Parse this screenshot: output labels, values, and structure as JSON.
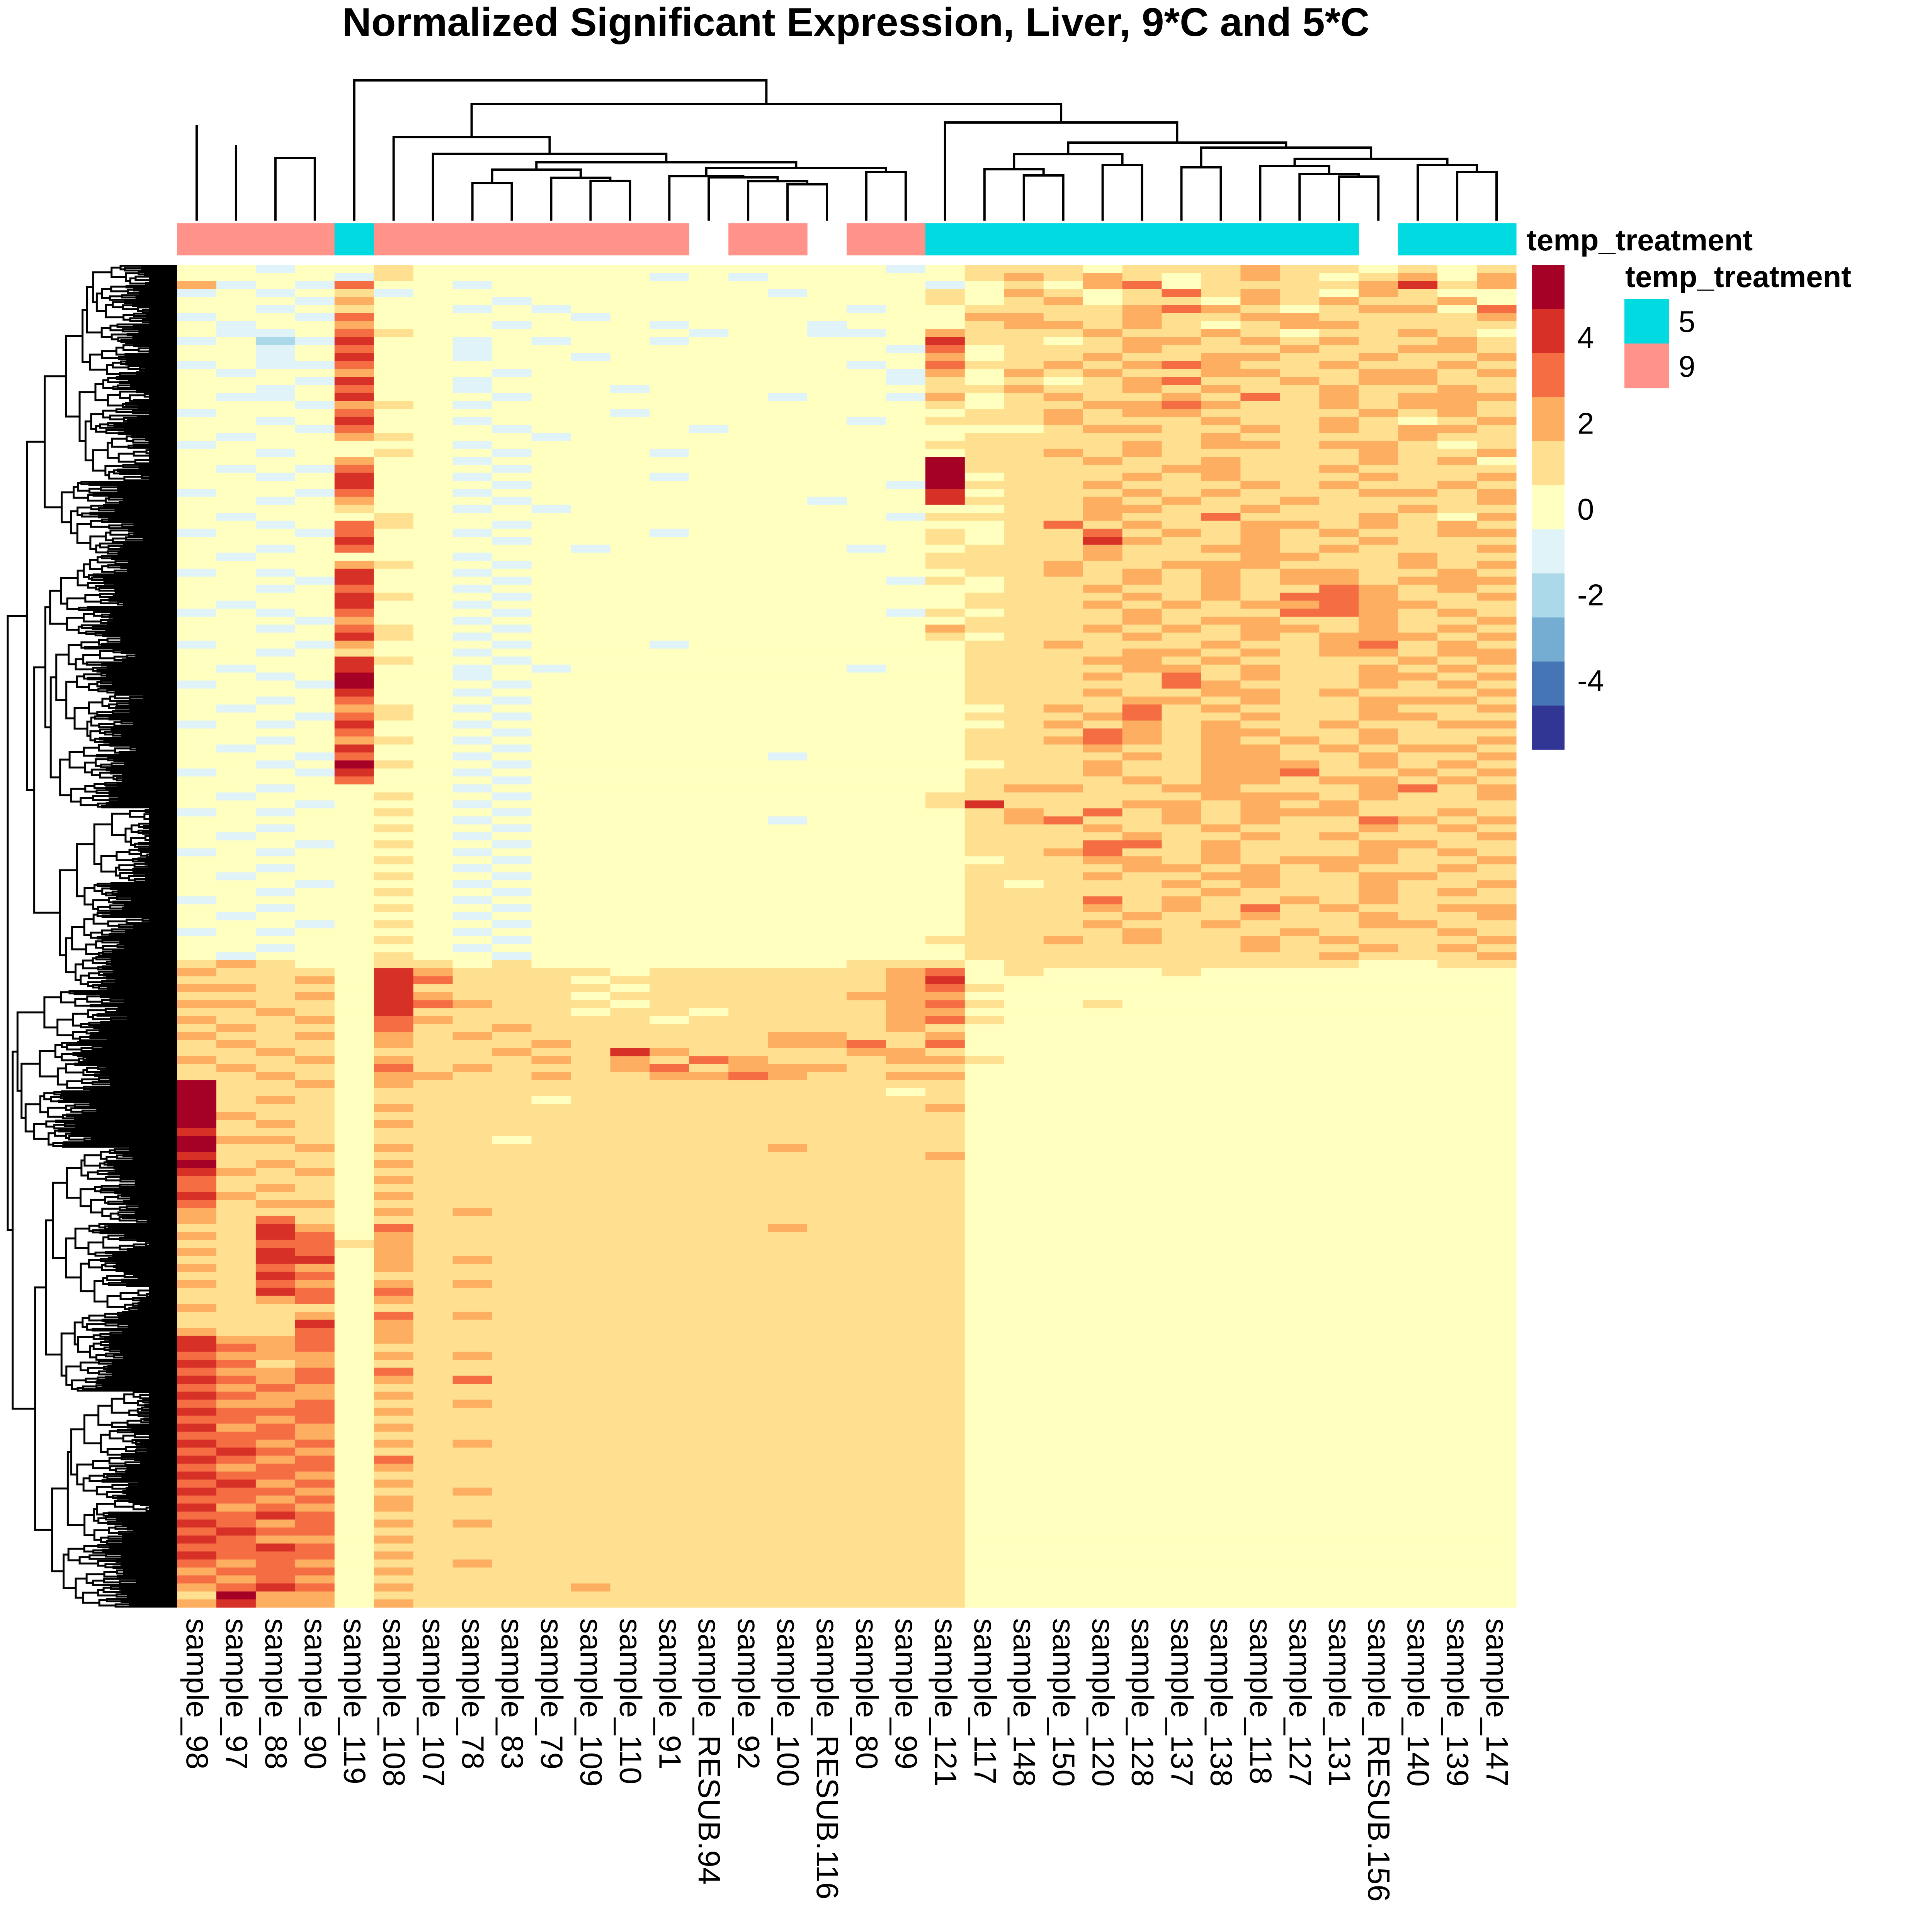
{
  "chart_data": {
    "type": "heatmap",
    "title": "Normalized Significant Expression, Liver, 9*C and 5*C",
    "columns": [
      "sample_98",
      "sample_97",
      "sample_88",
      "sample_90",
      "sample_119",
      "sample_108",
      "sample_107",
      "sample_78",
      "sample_83",
      "sample_79",
      "sample_109",
      "sample_110",
      "sample_91",
      "sample_RESUB.94",
      "sample_92",
      "sample_100",
      "sample_RESUB.116",
      "sample_80",
      "sample_99",
      "sample_121",
      "sample_117",
      "sample_148",
      "sample_150",
      "sample_120",
      "sample_128",
      "sample_137",
      "sample_138",
      "sample_118",
      "sample_127",
      "sample_131",
      "sample_RESUB.156",
      "sample_140",
      "sample_139",
      "sample_147"
    ],
    "annotation": {
      "name": "temp_treatment",
      "values": [
        "9",
        "9",
        "9",
        "9",
        "5",
        "9",
        "9",
        "9",
        "9",
        "9",
        "9",
        "9",
        "9",
        null,
        "9",
        "9",
        null,
        "9",
        "9",
        "5",
        "5",
        "5",
        "5",
        "5",
        "5",
        "5",
        "5",
        "5",
        "5",
        "5",
        null,
        "5",
        "5",
        "5"
      ],
      "legend_title": "temp_treatment",
      "levels": [
        {
          "label": "5",
          "color": "#00DAE0"
        },
        {
          "label": "9",
          "color": "#FF9289"
        }
      ]
    },
    "colorscale": {
      "levels": [
        -5.5,
        -4.5,
        -3.5,
        -2.5,
        -1.5,
        -0.5,
        0.5,
        1.5,
        2.5,
        3.5,
        4.5,
        5.5
      ],
      "colors": [
        "#313695",
        "#4575B4",
        "#74ADD1",
        "#ABD9E9",
        "#E0F3F8",
        "#FFFFBF",
        "#FEE090",
        "#FDAE61",
        "#F46D43",
        "#D73027",
        "#A50026"
      ],
      "ticks": [
        "4",
        "2",
        "0",
        "-2",
        "-4"
      ],
      "tick_values": [
        4,
        2,
        0,
        -2,
        -4
      ],
      "range": [
        -5.6,
        5.7
      ]
    },
    "value_encoding": "each row string has one char per column; char is index into colorscale.colors (0=-5 ... 5=0 ... A=+5)",
    "column_dendrogram": {
      "merges": [
        [
          [
            1
          ],
          [
            2,
            3
          ],
          0.378
        ],
        [
          [
            2
          ],
          [
            3
          ],
          0.409
        ],
        [
          [
            0
          ],
          [
            1,
            2,
            3
          ],
          0.327
        ],
        [
          [
            7
          ],
          [
            8
          ],
          0.474
        ],
        [
          [
            10
          ],
          [
            11
          ],
          0.468
        ],
        [
          [
            9
          ],
          [
            10,
            11
          ],
          0.46
        ],
        [
          [
            7,
            8
          ],
          [
            9,
            10,
            11
          ],
          0.439
        ],
        [
          [
            15
          ],
          [
            16
          ],
          0.477
        ],
        [
          [
            14
          ],
          [
            15,
            16
          ],
          0.469
        ],
        [
          [
            13
          ],
          [
            14,
            15,
            16
          ],
          0.459
        ],
        [
          [
            12
          ],
          [
            13,
            14,
            15,
            16
          ],
          0.456
        ],
        [
          [
            17
          ],
          [
            18
          ],
          0.445
        ],
        [
          [
            12,
            13,
            14,
            15,
            16
          ],
          [
            17,
            18
          ],
          0.435
        ],
        [
          [
            7,
            8,
            9,
            10,
            11
          ],
          [
            12,
            13,
            14,
            15,
            16,
            17,
            18
          ],
          0.42
        ],
        [
          [
            6
          ],
          [
            7,
            8,
            9,
            10,
            11,
            12,
            13,
            14,
            15,
            16,
            17,
            18
          ],
          0.398
        ],
        [
          [
            5
          ],
          [
            6,
            7,
            8,
            9,
            10,
            11,
            12,
            13,
            14,
            15,
            16,
            17,
            18
          ],
          0.355
        ],
        [
          [
            21
          ],
          [
            22
          ],
          0.454
        ],
        [
          [
            20
          ],
          [
            21,
            22
          ],
          0.438
        ],
        [
          [
            23
          ],
          [
            24
          ],
          0.427
        ],
        [
          [
            20,
            21,
            22
          ],
          [
            23,
            24
          ],
          0.399
        ],
        [
          [
            25
          ],
          [
            26
          ],
          0.433
        ],
        [
          [
            29
          ],
          [
            30
          ],
          0.457
        ],
        [
          [
            28
          ],
          [
            29,
            30
          ],
          0.45
        ],
        [
          [
            27
          ],
          [
            28,
            29,
            30
          ],
          0.43
        ],
        [
          [
            32
          ],
          [
            33
          ],
          0.445
        ],
        [
          [
            31
          ],
          [
            32,
            33
          ],
          0.427
        ],
        [
          [
            27,
            28,
            29,
            30
          ],
          [
            31,
            32,
            33
          ],
          0.411
        ],
        [
          [
            25,
            26
          ],
          [
            27,
            28,
            29,
            30,
            31,
            32,
            33
          ],
          0.382
        ],
        [
          [
            20,
            21,
            22,
            23,
            24
          ],
          [
            25,
            26,
            27,
            28,
            29,
            30,
            31,
            32,
            33
          ],
          0.369
        ],
        [
          [
            19
          ],
          [
            20,
            21,
            22,
            23,
            24,
            25,
            26,
            27,
            28,
            29,
            30,
            31,
            32,
            33
          ],
          0.317
        ],
        [
          [
            5,
            6,
            7,
            8,
            9,
            10,
            11,
            12,
            13,
            14,
            15,
            16,
            17,
            18
          ],
          [
            19,
            20,
            21,
            22,
            23,
            24,
            25,
            26,
            27,
            28,
            29,
            30,
            31,
            32,
            33
          ],
          0.269
        ],
        [
          [
            4
          ],
          [
            5,
            6,
            7,
            8,
            9,
            10,
            11,
            12,
            13,
            14,
            15,
            16,
            17,
            18,
            19,
            20,
            21,
            22,
            23,
            24,
            25,
            26,
            27,
            28,
            29,
            30,
            31,
            32,
            33
          ],
          0.208
        ],
        [
          [
            0,
            1,
            2,
            3
          ],
          [
            4,
            5,
            6,
            7,
            8,
            9,
            10,
            11,
            12,
            13,
            14,
            15,
            16,
            17,
            18,
            19,
            20,
            21,
            22,
            23,
            24,
            25,
            26,
            27,
            28,
            29,
            30,
            31,
            32,
            33
          ],
          0.132
        ]
      ]
    },
    "rows": [
      "5545565555555555554566656667665656",
      "5555465555554545555567676567656757",
      "7454855455555555555456578566667967",
      "4545645555555554555657656867657655",
      "5554755545555555555656756657676675",
      "5545655454555555545566667876567758",
      "4554855555455555555577667667766667",
      "5455755545554555455567767656776666",
      "5445865555555455445766676676566765",
      "4534955454554555555966567767676676",
      "5545855455555555554856667666766776",
      "5545955455455555555756676677667667",
      "4544855555555555545866767876676676",
      "5455755545555555554757676677667767",
      "5554955455555555554656567866767766",
      "5545855455545555555667667676676676",
      "5445955545555554554756766768676777",
      "5554765455555555555656677876676776",
      "4555855555545555555566767766667676",
      "5545955455555555545666766676676567",
      "5554855545555455555555677667676776",
      "5455765554555555555566666676666766",
      "4555555455555555555666667677677656",
      "5545565545554555555566767666667667",
      "5555755455555555555A66676676667675",
      "5454855545555555555A66666776676666",
      "5545955455554555555A56667676667667",
      "5555955545555555554A66676667676676",
      "4554855455555555555956667676667767",
      "5545755545555555455966676766766667",
      "5555655454555555555556677667666766",
      "5455565555555555554666676686667657",
      "5545865545555555555556867667767676",
      "4554855455554555555656686767676677",
      "5555955545555555555656697667667666",
      "5545855555455555545566676677676667",
      "5455555455555555555666676667766766",
      "5555765545555555555666766777666767",
      "4545955455555555555566767676776676",
      "5554955545555555554656667676776777",
      "5545855455555555555556676676687676",
      "5555965545555555555566667676887667",
      "5455955455555555555566676767787766",
      "4545855545555555554656667666887676",
      "5554755455555555555566667677667667",
      "5545865545555555555766676767767676",
      "5555965455555555555656667667677767",
      "4554755545554555555566766676678676",
      "5545655455555555555566667767677677",
      "5555965545555555555566677676666767",
      "5455955454555555545566667767667676",
      "5545A55455555555555566676867667767",
      "4554A55545555555555566666876667676",
      "5555955455555555555566676677676667",
      "5545855545555555555566667767667776",
      "5455765455555555555556768676667667",
      "5554865545555555555566678667667766",
      "4545955455555555555556767676676677",
      "5555855545555555555566687677667666",
      "5545765455555555555566787676767667",
      "5455955545555555555566676677676776",
      "5554855455555554555566667677667667",
      "5545A65545555555555556676677767676",
      "4554955455555555555566676677866767",
      "5555855545555555555566667677677676",
      "5545555455555555555567766776667867",
      "5455565545555555555666666677767667",
      "5554555455555555555696667767676666",
      "4545565545555555555567686767776676",
      "5555555455555554555567866767668767",
      "5545565545555555555566676676667676",
      "5455555455555555555566667667676667",
      "5554565545555555555566688676667766",
      "4545555455555555555566786676667676",
      "5555565545555555555556677676777667",
      "5545555455555555555566667767676676",
      "5455565545555555555566676677667766",
      "5554555455555555555565666767667667",
      "5545565545555555555566666676667676",
      "4555555455555555555566686766767666",
      "5545565545555555555566676768676677",
      "5455555455555555555566667667667667",
      "5554565545555555555566676676667766",
      "4545555455555555555566667666766676",
      "5555565545555555555666767667676667",
      "5545555455555555555566666667667676",
      "5455565545555555555566666666676667",
      "6765566565555555566656666666665566",
      "7666597666656666667856555655555555",
      "6667598666566666667955555555555555",
      "7766596666656666667865555555555555",
      "6667597666566666677755555555555555",
      "7766598766656666667865565555555555",
      "6676596666566566667755555555555555",
      "7667587666665666667865555555555555",
      "6766586676666666667655555555555555",
      "7667576766666667766755555555555555",
      "6766576667666667786855555555555555",
      "6676566676697666677655555555555555",
      "7667576667676876667765555555555555",
      "6766586766678677766655555555555555",
      "6676577667667787667755555555555555",
      "A667576666666666666655555555555555",
      "A666566666666666665655555555555555",
      "A676566665666666666655555555555555",
      "A666576666666666666755555555555555",
      "A766566666666666666655555555555555",
      "A676576666666666666655555555555555",
      "9666566666666666666655555555555555",
      "A776566656666666666655555555555555",
      "A667576666666667666655555555555555",
      "9666566666666666666755555555555555",
      "A676576666666666666655555555555555",
      "9767566666666666666655555555555555",
      "8666576666666666666655555555555555",
      "8676566666666666666655555555555555",
      "9766576666666666666655555555555555",
      "8677566666666666666655555555555555",
      "7666576766666666666655555555555555",
      "7686566666666666666655555555555555",
      "6697586666666667666655555555555555",
      "7698576666666666666655555555555555",
      "6688676666666666666655555555555555",
      "7698576666666666666655555555555555",
      "6699576766666666666655555555555555",
      "7687576666666666666655555555555555",
      "6698566666666666666655555555555555",
      "7687576766666666666655555555555555",
      "6698586666666666666655555555555555",
      "6678576666666666666655555555555555",
      "7666566666666666666655555555555555",
      "6667586766666666666655555555555555",
      "6669576666666666666655555555555555",
      "7668576666666666666655555555555555",
      "9778576666666666666655555555555555",
      "9878566666666666666655555555555555",
      "8777576766666666666655555555555555",
      "9867566666666666666655555555555555",
      "8778586666666666666655555555555555",
      "9878576866666666666655555555555555",
      "8787566666666666666655555555555555",
      "9877576666666666666655555555555555",
      "8778566766666666666655555555555555",
      "9888576666666666666655555555555555",
      "8878566666666666666655555555555555",
      "9787576666666666666655555555555555",
      "8887566666666666666655555555555555",
      "9878576766666666666655555555555555",
      "8987566666666666666655555555555555",
      "9878586666666666666655555555555555",
      "8788576666666666666655555555555555",
      "9887566666666666666655555555555555",
      "8978576666666666666655555555555555",
      "9887566766666666666655555555555555",
      "8878576666666666666655555555555555",
      "9787576666666666666655555555555555",
      "8898566666666666666655555555555555",
      "9878576766666666666655555555555555",
      "8988566666666666666655555555555555",
      "9877576666666666666655555555555555",
      "8898566666666666666655555555555555",
      "9888576666666666666655555555555555",
      "8787566766666666666655555555555555",
      "7888576666666666666655555555555555",
      "8787566666666666666655555555555555",
      "7898576666766666666655555555555555",
      "6A77566666666666666655555555555555",
      "7977576666666666666655555555555555"
    ]
  }
}
